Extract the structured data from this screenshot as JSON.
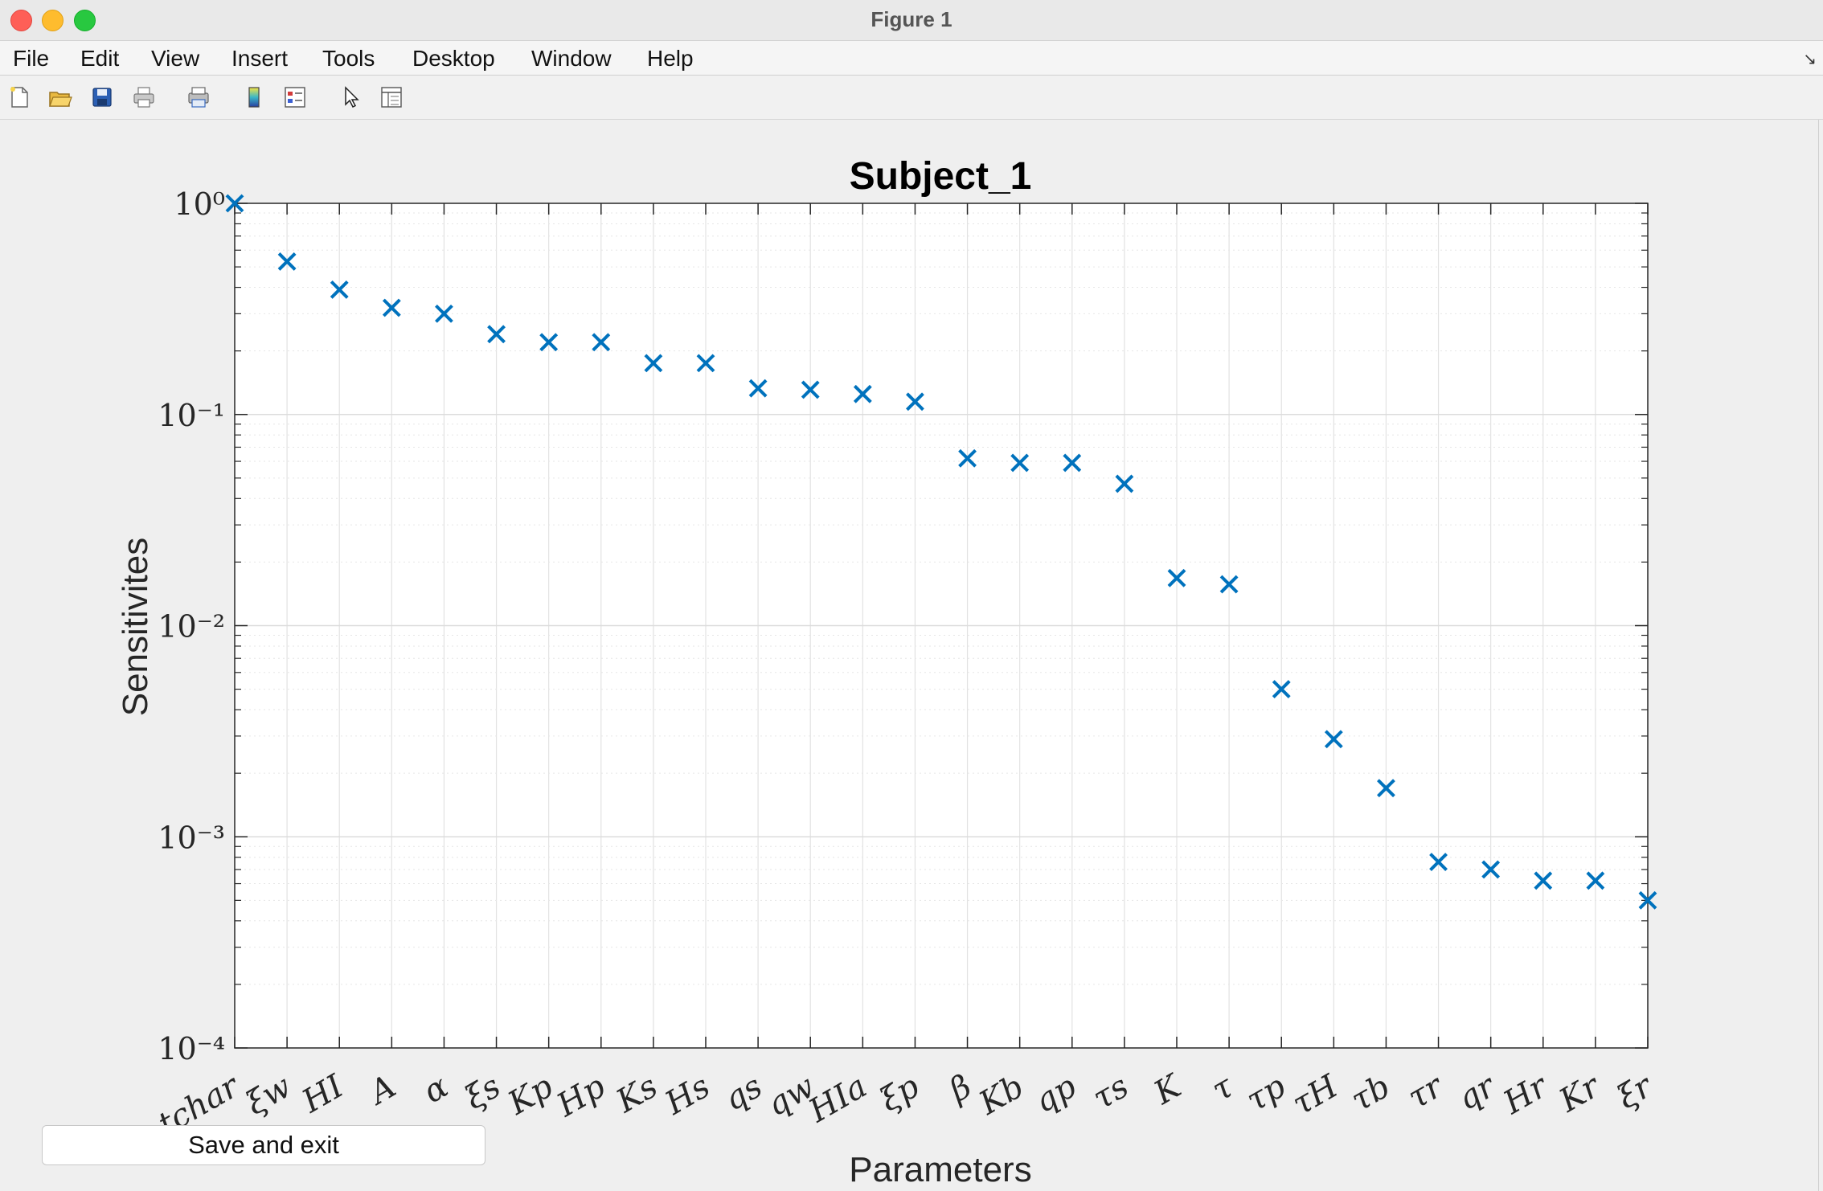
{
  "window": {
    "title": "Figure 1"
  },
  "menubar": {
    "items": [
      "File",
      "Edit",
      "View",
      "Insert",
      "Tools",
      "Desktop",
      "Window",
      "Help"
    ]
  },
  "toolbar": {
    "tools": [
      "new-figure-icon",
      "open-file-icon",
      "save-icon",
      "print-icon",
      "print-preview-icon",
      "colorbar-icon",
      "legend-icon",
      "pointer-icon",
      "property-inspector-icon"
    ]
  },
  "chart_data": {
    "type": "scatter",
    "title": "Subject_1",
    "xlabel": "Parameters",
    "ylabel": "Sensitivites",
    "yscale": "log",
    "ylim": [
      0.0001,
      1
    ],
    "y_tick_labels": [
      "10⁰",
      "10⁻¹",
      "10⁻²",
      "10⁻³",
      "10⁻⁴"
    ],
    "grid": true,
    "marker": "x",
    "color": "#0072bd",
    "categories": [
      "tchar",
      "ξw",
      "HI",
      "A",
      "α",
      "ξs",
      "Kp",
      "Hp",
      "Ks",
      "Hs",
      "qs",
      "qw",
      "HIa",
      "ξp",
      "β",
      "Kb",
      "qp",
      "τs",
      "K",
      "τ",
      "τp",
      "τH",
      "τb",
      "τr",
      "qr",
      "Hr",
      "Kr",
      "ξr"
    ],
    "values": [
      1.0,
      0.53,
      0.39,
      0.32,
      0.3,
      0.24,
      0.22,
      0.22,
      0.175,
      0.175,
      0.133,
      0.131,
      0.125,
      0.115,
      0.062,
      0.059,
      0.059,
      0.047,
      0.0168,
      0.0157,
      0.005,
      0.0029,
      0.0017,
      0.00076,
      0.0007,
      0.00062,
      0.00062,
      0.0005
    ]
  },
  "footer": {
    "save_label": "Save and exit"
  }
}
